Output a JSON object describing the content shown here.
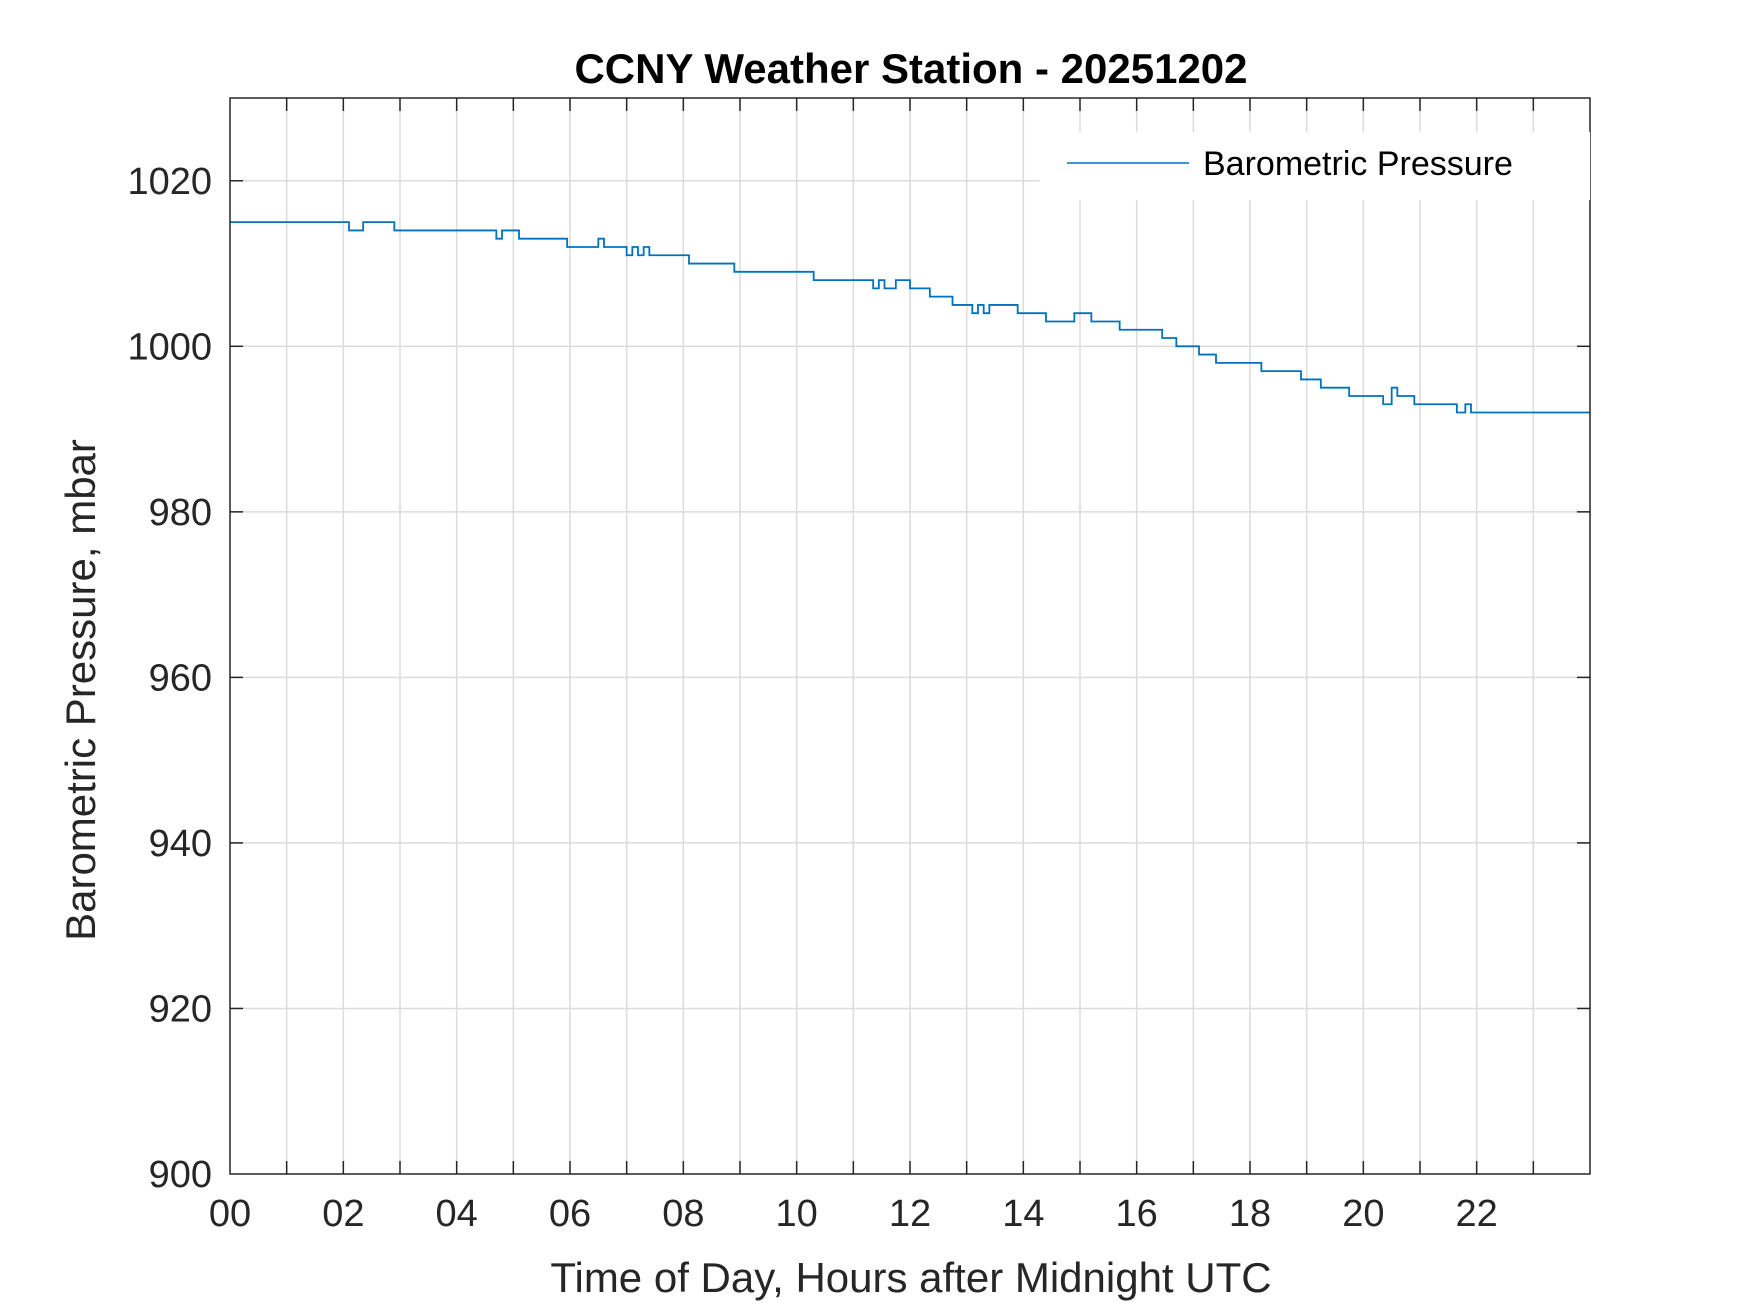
{
  "chart_data": {
    "type": "line",
    "title": "CCNY Weather Station - 20251202",
    "xlabel": "Time of Day, Hours after Midnight UTC",
    "ylabel": "Barometric Pressure, mbar",
    "xlim": [
      0,
      24
    ],
    "ylim": [
      900,
      1030
    ],
    "x_ticks": [
      0,
      2,
      4,
      6,
      8,
      10,
      12,
      14,
      16,
      18,
      20,
      22
    ],
    "x_tick_labels": [
      "00",
      "02",
      "04",
      "06",
      "08",
      "10",
      "12",
      "14",
      "16",
      "18",
      "20",
      "22"
    ],
    "x_minor_grid_step": 1,
    "y_ticks": [
      900,
      920,
      940,
      960,
      980,
      1000,
      1020
    ],
    "y_tick_labels": [
      "900",
      "920",
      "940",
      "960",
      "980",
      "1000",
      "1020"
    ],
    "grid": true,
    "legend_position": "top-right",
    "series": [
      {
        "name": "Barometric Pressure",
        "color": "#0072BD",
        "step": true,
        "points": [
          [
            0,
            1015
          ],
          [
            2.05,
            1015
          ],
          [
            2.1,
            1014
          ],
          [
            2.3,
            1014
          ],
          [
            2.35,
            1015
          ],
          [
            2.85,
            1015
          ],
          [
            2.9,
            1014
          ],
          [
            4.65,
            1014
          ],
          [
            4.7,
            1013
          ],
          [
            4.75,
            1013
          ],
          [
            4.8,
            1014
          ],
          [
            5.05,
            1014
          ],
          [
            5.1,
            1013
          ],
          [
            5.9,
            1013
          ],
          [
            5.95,
            1012
          ],
          [
            6.45,
            1012
          ],
          [
            6.5,
            1013
          ],
          [
            6.55,
            1013
          ],
          [
            6.6,
            1012
          ],
          [
            6.95,
            1012
          ],
          [
            7.0,
            1011
          ],
          [
            7.05,
            1011
          ],
          [
            7.1,
            1012
          ],
          [
            7.15,
            1012
          ],
          [
            7.2,
            1011
          ],
          [
            7.25,
            1011
          ],
          [
            7.3,
            1012
          ],
          [
            7.35,
            1012
          ],
          [
            7.4,
            1011
          ],
          [
            8.05,
            1011
          ],
          [
            8.1,
            1010
          ],
          [
            8.85,
            1010
          ],
          [
            8.9,
            1009
          ],
          [
            10.25,
            1009
          ],
          [
            10.3,
            1008
          ],
          [
            11.3,
            1008
          ],
          [
            11.35,
            1007
          ],
          [
            11.4,
            1007
          ],
          [
            11.45,
            1008
          ],
          [
            11.5,
            1008
          ],
          [
            11.55,
            1007
          ],
          [
            11.7,
            1007
          ],
          [
            11.75,
            1008
          ],
          [
            11.95,
            1008
          ],
          [
            12.0,
            1007
          ],
          [
            12.3,
            1007
          ],
          [
            12.35,
            1006
          ],
          [
            12.7,
            1006
          ],
          [
            12.75,
            1005
          ],
          [
            13.05,
            1005
          ],
          [
            13.1,
            1004
          ],
          [
            13.15,
            1004
          ],
          [
            13.2,
            1005
          ],
          [
            13.25,
            1005
          ],
          [
            13.3,
            1004
          ],
          [
            13.35,
            1004
          ],
          [
            13.4,
            1005
          ],
          [
            13.85,
            1005
          ],
          [
            13.9,
            1004
          ],
          [
            14.35,
            1004
          ],
          [
            14.4,
            1003
          ],
          [
            14.85,
            1003
          ],
          [
            14.9,
            1004
          ],
          [
            15.15,
            1004
          ],
          [
            15.2,
            1003
          ],
          [
            15.65,
            1003
          ],
          [
            15.7,
            1002
          ],
          [
            16.4,
            1002
          ],
          [
            16.45,
            1001
          ],
          [
            16.65,
            1001
          ],
          [
            16.7,
            1000
          ],
          [
            17.05,
            1000
          ],
          [
            17.1,
            999
          ],
          [
            17.35,
            999
          ],
          [
            17.4,
            998
          ],
          [
            18.15,
            998
          ],
          [
            18.2,
            997
          ],
          [
            18.85,
            997
          ],
          [
            18.9,
            996
          ],
          [
            19.2,
            996
          ],
          [
            19.25,
            995
          ],
          [
            19.7,
            995
          ],
          [
            19.75,
            994
          ],
          [
            20.3,
            994
          ],
          [
            20.35,
            993
          ],
          [
            20.45,
            993
          ],
          [
            20.5,
            995
          ],
          [
            20.55,
            995
          ],
          [
            20.6,
            994
          ],
          [
            20.85,
            994
          ],
          [
            20.9,
            993
          ],
          [
            21.6,
            993
          ],
          [
            21.65,
            992
          ],
          [
            21.75,
            992
          ],
          [
            21.8,
            993
          ],
          [
            21.85,
            993
          ],
          [
            21.9,
            992
          ],
          [
            24,
            992
          ]
        ]
      }
    ]
  }
}
